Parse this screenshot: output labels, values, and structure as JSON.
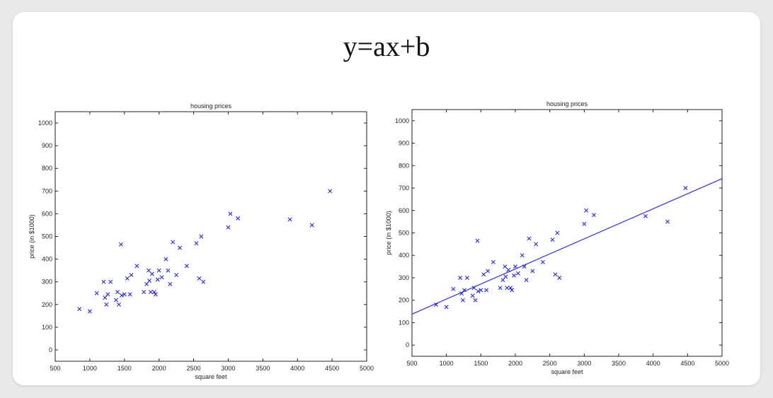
{
  "slide": {
    "title": "y=ax+b"
  },
  "chart_data": [
    {
      "type": "scatter",
      "title": "housing prices",
      "xlabel": "square feet",
      "ylabel": "price (in $1000)",
      "xlim": [
        500,
        5000
      ],
      "ylim": [
        -50,
        1050
      ],
      "xticks": [
        500,
        1000,
        1500,
        2000,
        2500,
        3000,
        3500,
        4000,
        4500,
        5000
      ],
      "yticks": [
        0,
        100,
        200,
        300,
        400,
        500,
        600,
        700,
        800,
        900,
        1000
      ],
      "marker": "x",
      "marker_color": "#2a2ad0",
      "grid": false,
      "series": [
        {
          "x": [
            850,
            1000,
            1100,
            1200,
            1220,
            1240,
            1260,
            1300,
            1380,
            1400,
            1420,
            1450,
            1460,
            1500,
            1540,
            1580,
            1600,
            1680,
            1780,
            1820,
            1850,
            1860,
            1880,
            1900,
            1930,
            1950,
            1980,
            2000,
            2040,
            2100,
            2130,
            2160,
            2200,
            2250,
            2300,
            2400,
            2540,
            2580,
            2610,
            2640,
            3000,
            3030,
            3140,
            3890,
            4210,
            4470
          ],
          "y": [
            180,
            170,
            250,
            300,
            230,
            200,
            245,
            300,
            220,
            255,
            200,
            465,
            240,
            245,
            315,
            245,
            330,
            370,
            255,
            290,
            350,
            305,
            255,
            335,
            255,
            245,
            310,
            350,
            320,
            400,
            350,
            290,
            475,
            330,
            450,
            370,
            470,
            315,
            500,
            300,
            540,
            600,
            580,
            575,
            550,
            700
          ]
        }
      ]
    },
    {
      "type": "scatter",
      "title": "housing prices",
      "xlabel": "square feet",
      "ylabel": "price (in $1000)",
      "xlim": [
        500,
        5000
      ],
      "ylim": [
        -50,
        1050
      ],
      "xticks": [
        500,
        1000,
        1500,
        2000,
        2500,
        3000,
        3500,
        4000,
        4500,
        5000
      ],
      "yticks": [
        0,
        100,
        200,
        300,
        400,
        500,
        600,
        700,
        800,
        900,
        1000
      ],
      "marker": "x",
      "marker_color": "#2a2ad0",
      "grid": false,
      "series": [
        {
          "x": [
            850,
            1000,
            1100,
            1200,
            1220,
            1240,
            1260,
            1300,
            1380,
            1400,
            1420,
            1450,
            1460,
            1500,
            1540,
            1580,
            1600,
            1680,
            1780,
            1820,
            1850,
            1860,
            1880,
            1900,
            1930,
            1950,
            1980,
            2000,
            2040,
            2100,
            2130,
            2160,
            2200,
            2250,
            2300,
            2400,
            2540,
            2580,
            2610,
            2640,
            3000,
            3030,
            3140,
            3890,
            4210,
            4470
          ],
          "y": [
            180,
            170,
            250,
            300,
            230,
            200,
            245,
            300,
            220,
            255,
            200,
            465,
            240,
            245,
            315,
            245,
            330,
            370,
            255,
            290,
            350,
            305,
            255,
            335,
            255,
            245,
            310,
            350,
            320,
            400,
            350,
            290,
            475,
            330,
            450,
            370,
            470,
            315,
            500,
            300,
            540,
            600,
            580,
            575,
            550,
            700
          ]
        }
      ],
      "fit_line": {
        "x": [
          500,
          5000
        ],
        "y": [
          138,
          742
        ],
        "color": "#3a3ad8"
      }
    }
  ]
}
